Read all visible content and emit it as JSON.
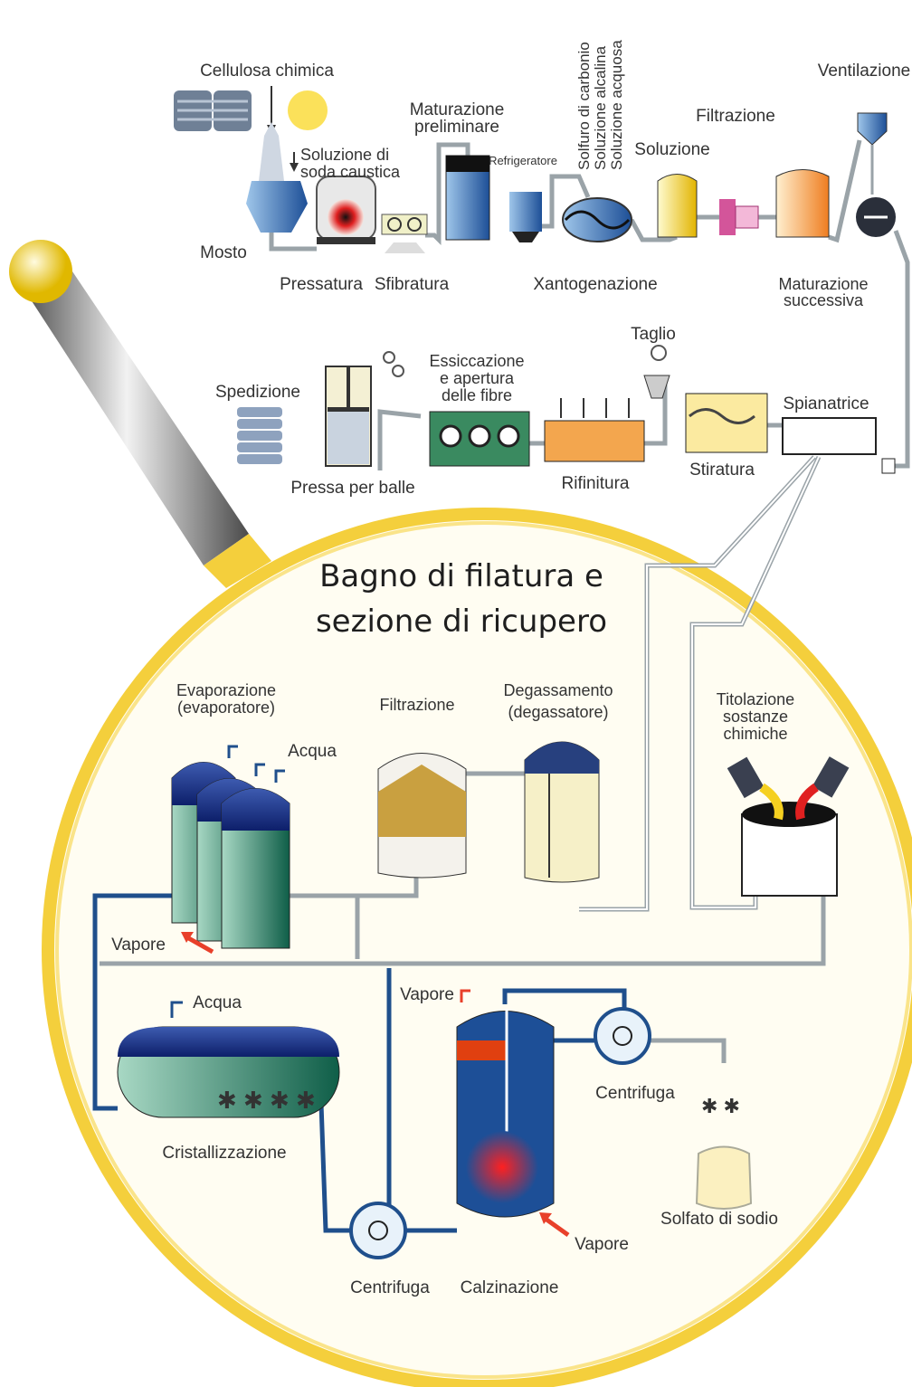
{
  "process_line": [
    [
      "Cellulosa chimica"
    ],
    [
      "Soluzione di",
      "soda caustica"
    ],
    [
      "Mosto"
    ],
    [
      "Pressatura"
    ],
    [
      "Sfibratura"
    ],
    [
      "Maturazione",
      "preliminare"
    ],
    [
      "Refrigeratore"
    ],
    [
      "Solfuro di carbonio",
      "Soluzione alcalina",
      "Soluzione acquosa"
    ],
    [
      "Soluzione"
    ],
    [
      "Filtrazione"
    ],
    [
      "Ventilazione"
    ],
    [
      "Xantogenazione"
    ],
    [
      "Maturazione",
      "successiva"
    ],
    [
      "Spedizione"
    ],
    [
      "Pressa per balle"
    ],
    [
      "Essiccazione",
      "e apertura",
      "delle fibre"
    ],
    [
      "Taglio"
    ],
    [
      "Rifinitura"
    ],
    [
      "Stiratura"
    ],
    [
      "Spianatrice"
    ]
  ],
  "recovery_section": {
    "title": [
      "Bagno di filatura e",
      "sezione di ricupero"
    ],
    "labels": [
      [
        "Evaporazione",
        "(evaporatore)"
      ],
      [
        "Filtrazione"
      ],
      [
        "Degassamento",
        "(degassatore)"
      ],
      [
        "Titolazione",
        "sostanze",
        "chimiche"
      ],
      [
        "Acqua"
      ],
      [
        "Vapore"
      ],
      [
        "Acqua"
      ],
      [
        "Cristallizzazione"
      ],
      [
        "Vapore"
      ],
      [
        "Centrifuga"
      ],
      [
        "Solfato di sodio"
      ],
      [
        "Vapore"
      ],
      [
        "Centrifuga"
      ],
      [
        "Calzinazione"
      ]
    ]
  }
}
